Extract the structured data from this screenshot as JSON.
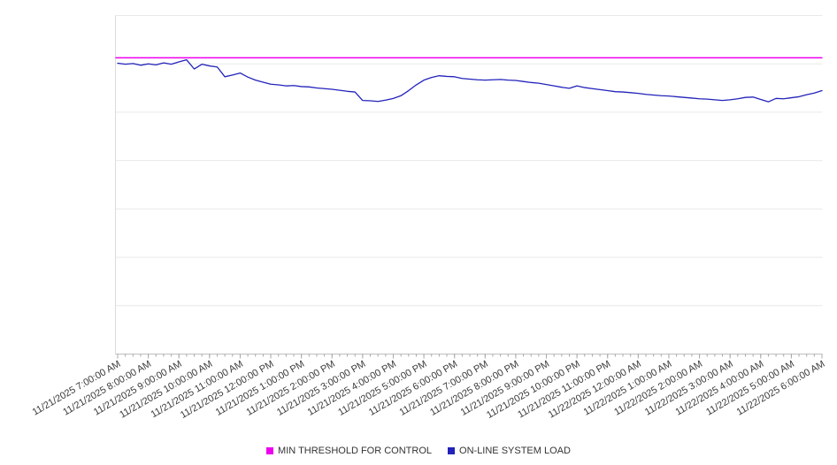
{
  "legend": [
    {
      "label": "MIN THRESHOLD FOR CONTROL",
      "color": "#ee00ee"
    },
    {
      "label": "ON-LINE SYSTEM LOAD",
      "color": "#2222bb"
    }
  ],
  "chart_data": {
    "type": "line",
    "title": "",
    "xlabel": "",
    "ylabel": "",
    "ylim": [
      0,
      100
    ],
    "grid": true,
    "legend_position": "bottom",
    "x_tick_rotation": -30,
    "categories": [
      "11/21/2025 7:00:00 AM",
      "11/21/2025 8:00:00 AM",
      "11/21/2025 9:00:00 AM",
      "11/21/2025 10:00:00 AM",
      "11/21/2025 11:00:00 AM",
      "11/21/2025 12:00:00 PM",
      "11/21/2025 1:00:00 PM",
      "11/21/2025 2:00:00 PM",
      "11/21/2025 3:00:00 PM",
      "11/21/2025 4:00:00 PM",
      "11/21/2025 5:00:00 PM",
      "11/21/2025 6:00:00 PM",
      "11/21/2025 7:00:00 PM",
      "11/21/2025 8:00:00 PM",
      "11/21/2025 9:00:00 PM",
      "11/21/2025 10:00:00 PM",
      "11/21/2025 11:00:00 PM",
      "11/22/2025 12:00:00 AM",
      "11/22/2025 1:00:00 AM",
      "11/22/2025 2:00:00 AM",
      "11/22/2025 3:00:00 AM",
      "11/22/2025 4:00:00 AM",
      "11/22/2025 5:00:00 AM",
      "11/22/2025 6:00:00 AM"
    ],
    "series": [
      {
        "name": "MIN THRESHOLD FOR CONTROL",
        "color": "#ee00ee",
        "style": "constant",
        "value": 87.5
      },
      {
        "name": "ON-LINE SYSTEM LOAD",
        "color": "#2222bb",
        "values": [
          85.9,
          85.6,
          85.8,
          85.3,
          85.7,
          85.4,
          86.0,
          85.6,
          86.3,
          86.9,
          84.2,
          85.6,
          85.1,
          84.8,
          81.9,
          82.4,
          83.0,
          81.8,
          80.9,
          80.3,
          79.7,
          79.5,
          79.2,
          79.3,
          79.0,
          78.9,
          78.6,
          78.4,
          78.2,
          77.9,
          77.6,
          77.4,
          74.9,
          74.8,
          74.6,
          75.0,
          75.5,
          76.3,
          77.8,
          79.5,
          80.9,
          81.7,
          82.2,
          82.0,
          81.9,
          81.4,
          81.2,
          81.0,
          80.9,
          81.0,
          81.1,
          80.9,
          80.8,
          80.5,
          80.2,
          80.0,
          79.6,
          79.2,
          78.8,
          78.5,
          79.2,
          78.7,
          78.4,
          78.1,
          77.8,
          77.5,
          77.4,
          77.2,
          77.0,
          76.7,
          76.5,
          76.3,
          76.2,
          76.0,
          75.8,
          75.6,
          75.4,
          75.3,
          75.1,
          74.9,
          75.1,
          75.4,
          75.8,
          75.9,
          75.2,
          74.5,
          75.5,
          75.4,
          75.7,
          76.0,
          76.6,
          77.1,
          77.8
        ]
      }
    ]
  },
  "colors": {
    "gridline": "#e9e9e9",
    "axis": "#bfbfbf",
    "plot_border": "#dcdcdc",
    "tick": "#a8a8a8",
    "label_text": "#3a3a3a"
  }
}
